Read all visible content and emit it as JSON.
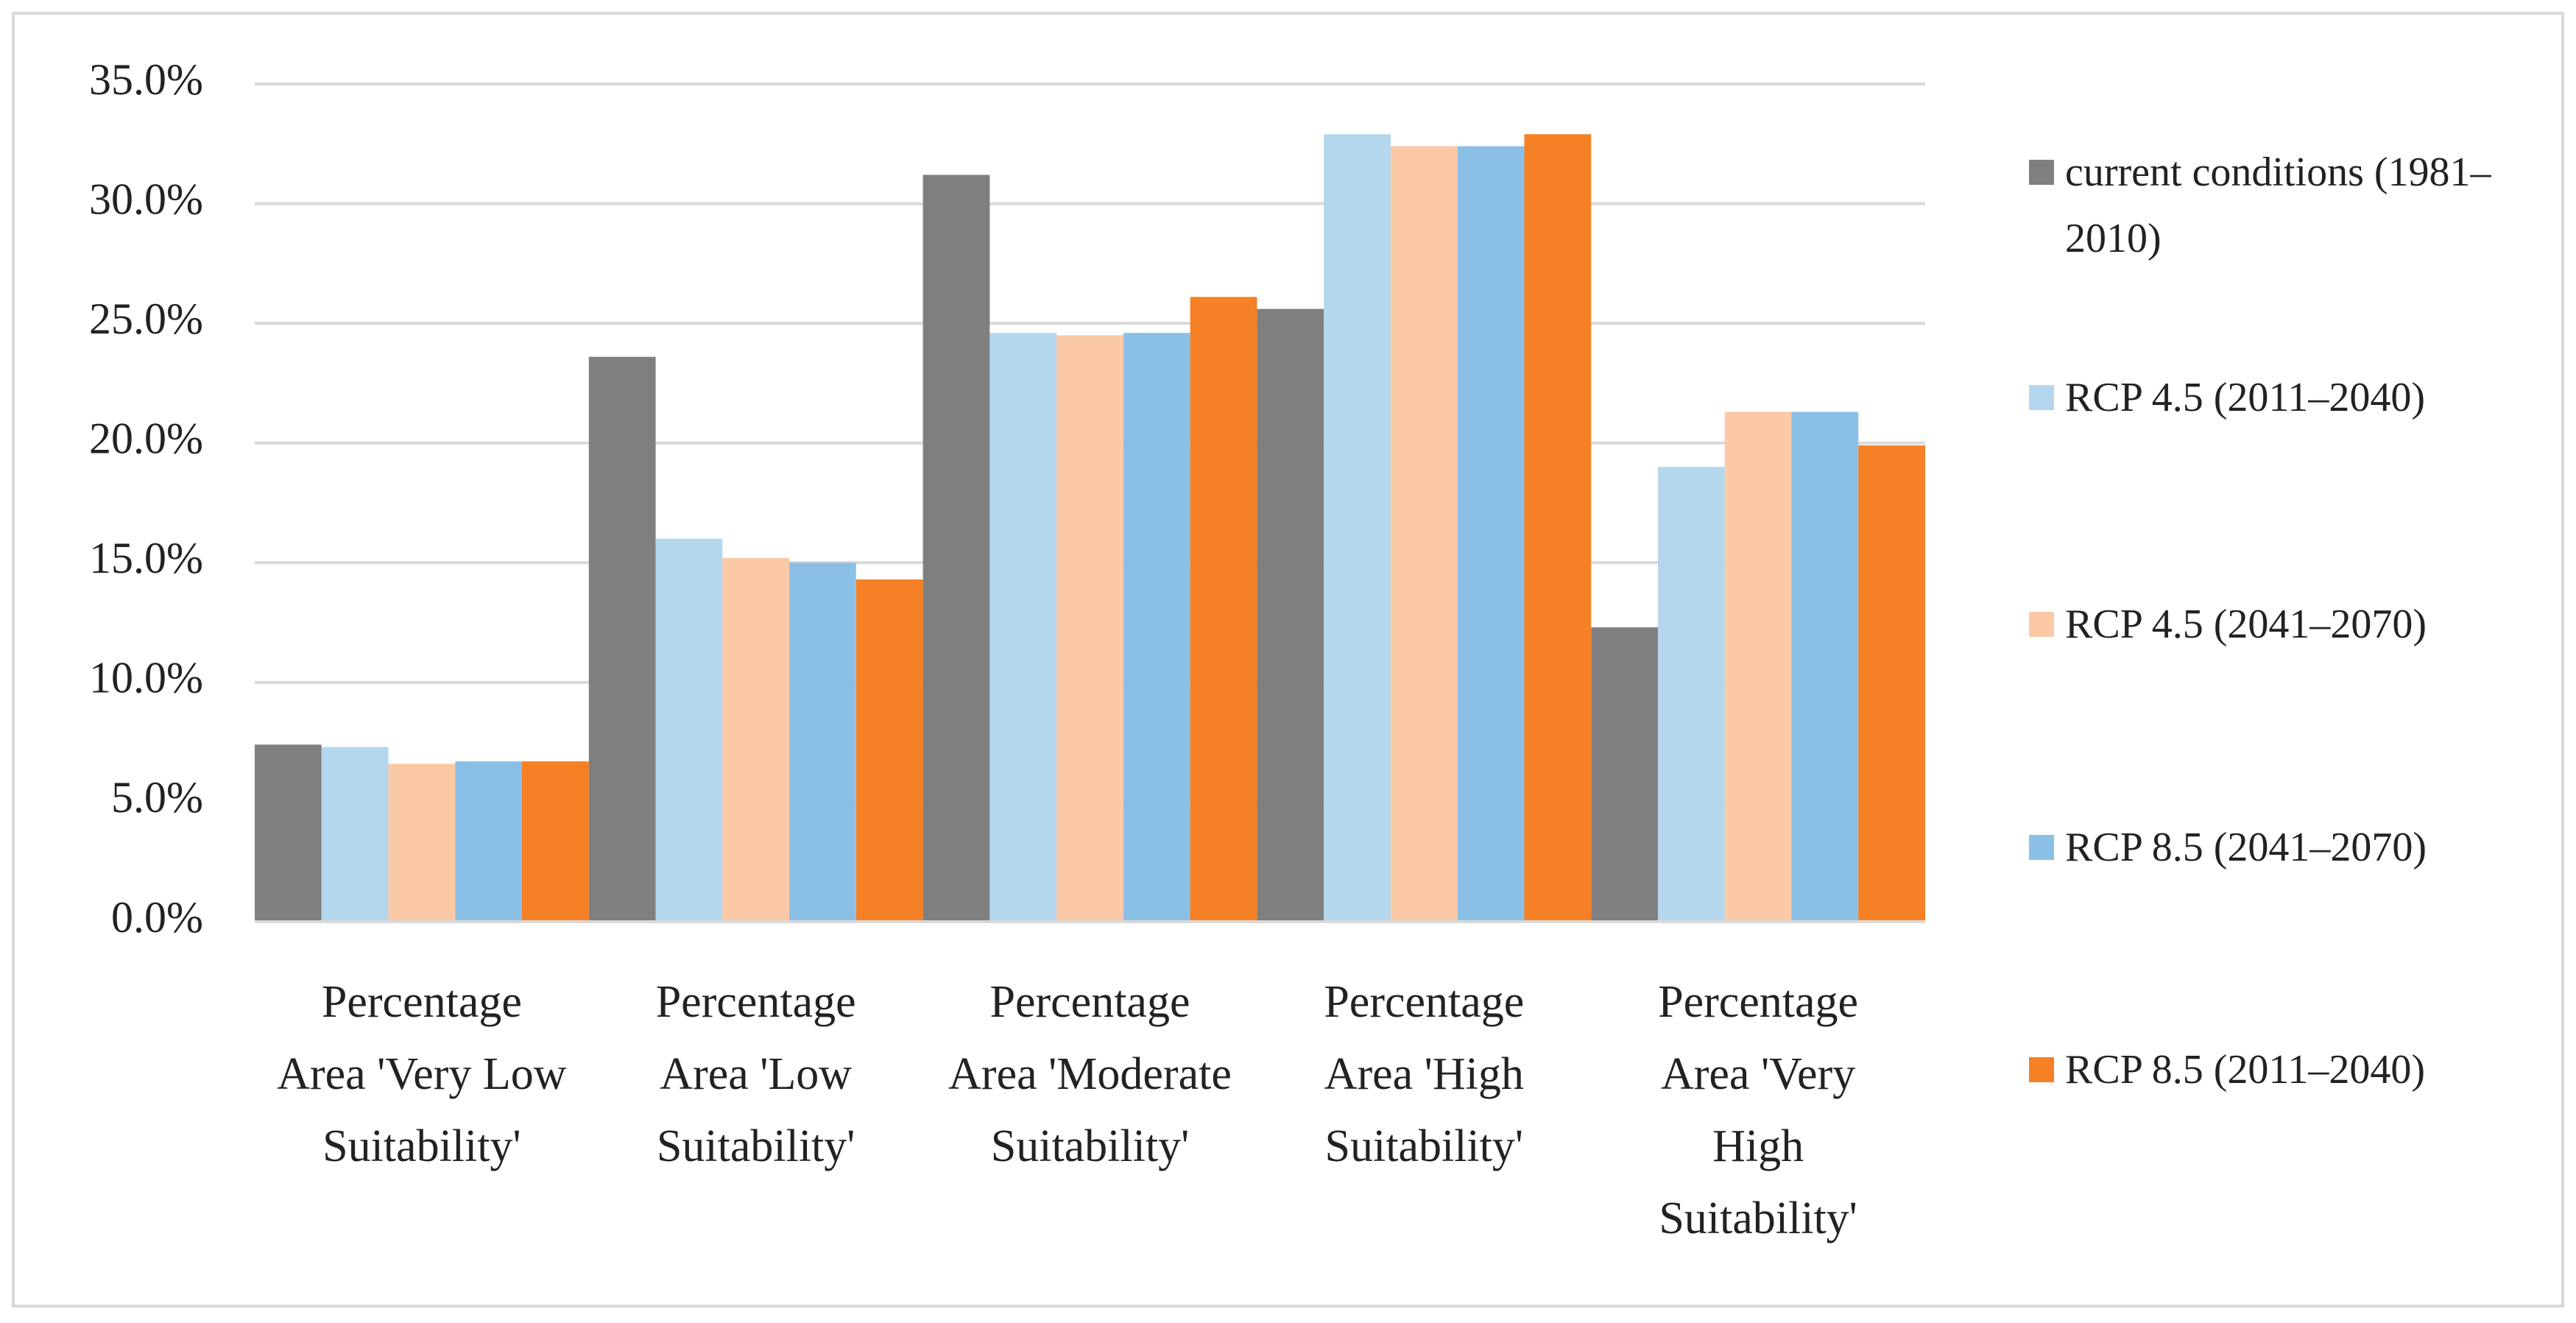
{
  "chart_data": {
    "type": "bar",
    "categories": [
      "Percentage Area 'Very Low Suitability'",
      "Percentage Area 'Low Suitability'",
      "Percentage Area 'Moderate Suitability'",
      "Percentage Area 'High Suitability'",
      "Percentage Area 'Very High Suitability'"
    ],
    "series": [
      {
        "name": "current conditions (1981–2010)",
        "color": "#7f7f7f",
        "values": [
          7.4,
          23.6,
          31.2,
          25.6,
          12.3
        ]
      },
      {
        "name": "RCP 4.5 (2011–2040)",
        "color": "#b4d7ee",
        "values": [
          7.3,
          16.0,
          24.6,
          32.9,
          19.0
        ]
      },
      {
        "name": "RCP 4.5 (2041–2070)",
        "color": "#fbc9a6",
        "values": [
          6.6,
          15.2,
          24.5,
          32.4,
          21.3
        ]
      },
      {
        "name": "RCP 8.5 (2041–2070)",
        "color": "#8bc0e6",
        "values": [
          6.7,
          15.0,
          24.6,
          32.4,
          21.3
        ]
      },
      {
        "name": "RCP 8.5 (2011–2040)",
        "color": "#f58025",
        "values": [
          6.7,
          14.3,
          26.1,
          32.9,
          19.9
        ]
      }
    ],
    "ylim": [
      0,
      35
    ],
    "yticks": [
      {
        "value": 0,
        "label": "0.0%"
      },
      {
        "value": 5,
        "label": "5.0%"
      },
      {
        "value": 10,
        "label": "10.0%"
      },
      {
        "value": 15,
        "label": "15.0%"
      },
      {
        "value": 20,
        "label": "20.0%"
      },
      {
        "value": 25,
        "label": "25.0%"
      },
      {
        "value": 30,
        "label": "30.0%"
      },
      {
        "value": 35,
        "label": "35.0%"
      }
    ],
    "grid": true,
    "legend": "right"
  }
}
